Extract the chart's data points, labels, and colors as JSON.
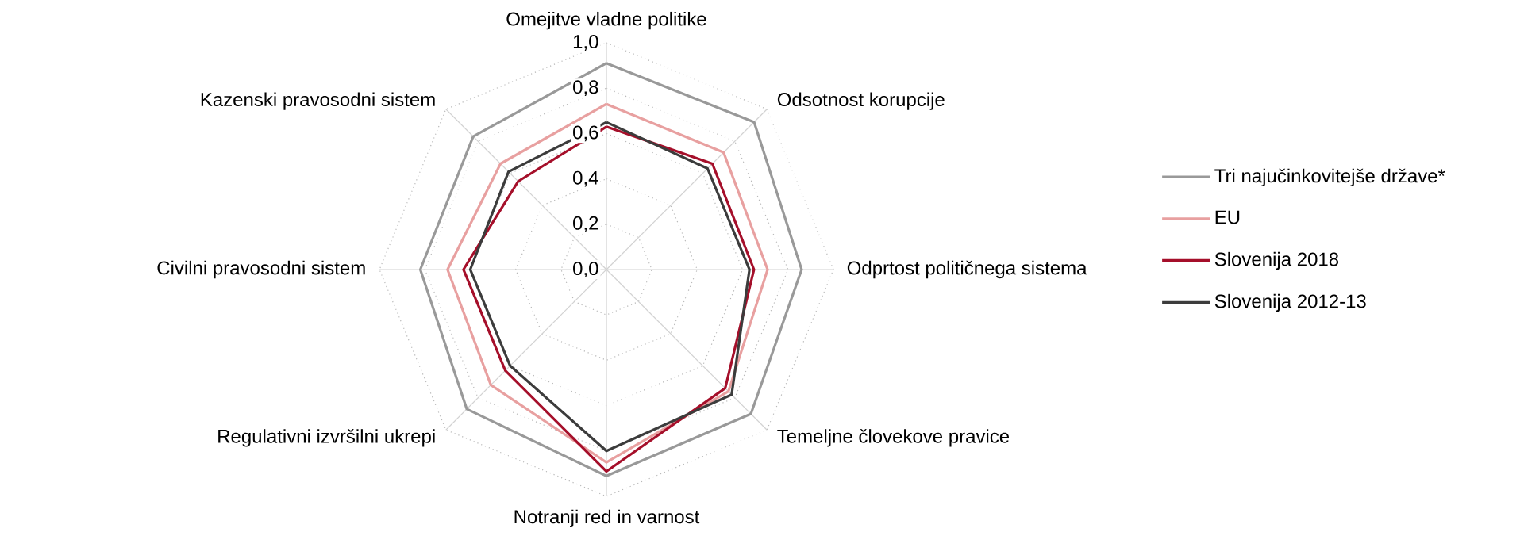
{
  "chart_data": {
    "type": "radar",
    "categories": [
      "Omejitve vladne politike",
      "Odsotnost korupcije",
      "Odprtost političnega sistema",
      "Temeljne človekove pravice",
      "Notranji red in varnost",
      "Regulativni izvršilni ukrepi",
      "Civilni pravosodni sistem",
      "Kazenski pravosodni sistem"
    ],
    "series": [
      {
        "name": "Tri najučinkovitejše države*",
        "color": "#999999",
        "values": [
          0.91,
          0.92,
          0.86,
          0.9,
          0.91,
          0.87,
          0.82,
          0.83
        ]
      },
      {
        "name": "EU",
        "color": "#e8a0a0",
        "values": [
          0.73,
          0.73,
          0.71,
          0.76,
          0.85,
          0.72,
          0.7,
          0.66
        ]
      },
      {
        "name": "Slovenija 2018",
        "color": "#a50f2a",
        "values": [
          0.63,
          0.66,
          0.65,
          0.74,
          0.89,
          0.63,
          0.63,
          0.55
        ]
      },
      {
        "name": "Slovenija 2012-13",
        "color": "#3c3c3c",
        "values": [
          0.65,
          0.63,
          0.63,
          0.78,
          0.8,
          0.6,
          0.6,
          0.61
        ]
      }
    ],
    "ylim": [
      0,
      1
    ],
    "yticks": [
      {
        "value": 0,
        "label": "0,0"
      },
      {
        "value": 0.2,
        "label": "0,2"
      },
      {
        "value": 0.4,
        "label": "0,4"
      },
      {
        "value": 0.6,
        "label": "0,6"
      },
      {
        "value": 0.8,
        "label": "0,8"
      },
      {
        "value": 1,
        "label": "1,0"
      }
    ],
    "grid": true,
    "legend": "right"
  }
}
